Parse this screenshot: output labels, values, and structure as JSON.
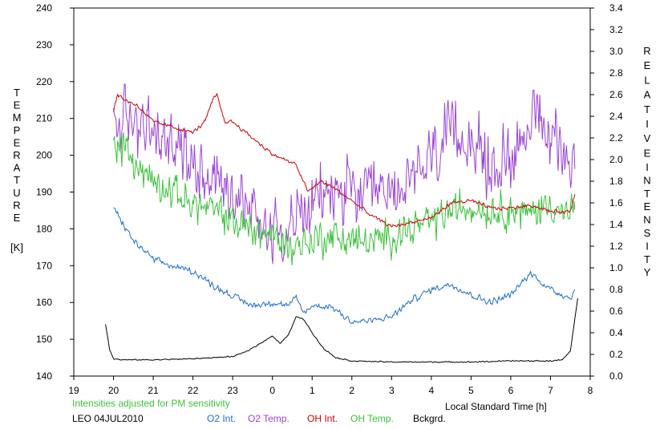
{
  "chart_data": {
    "type": "line",
    "x_axis": {
      "label": "Local Standard Time [h]",
      "range": [
        19,
        8
      ],
      "tick_labels": [
        "19",
        "20",
        "21",
        "22",
        "23",
        "0",
        "1",
        "2",
        "3",
        "4",
        "5",
        "6",
        "7",
        "8"
      ]
    },
    "y_left": {
      "label_letters": [
        "T",
        "E",
        "M",
        "P",
        "E",
        "R",
        "A",
        "T",
        "U",
        "R",
        "E"
      ],
      "unit": "[K]",
      "range": [
        140,
        240
      ],
      "tick_labels": [
        "140",
        "150",
        "160",
        "170",
        "180",
        "190",
        "200",
        "210",
        "220",
        "230",
        "240"
      ]
    },
    "y_right": {
      "label_word1": [
        "R",
        "E",
        "L",
        "A",
        "T",
        "I",
        "V",
        "E"
      ],
      "label_word2": [
        "I",
        "N",
        "T",
        "E",
        "N",
        "S",
        "I",
        "T",
        "Y"
      ],
      "range": [
        0.0,
        3.4
      ],
      "tick_labels": [
        "0.0",
        "0.2",
        "0.4",
        "0.6",
        "0.8",
        "1.0",
        "1.2",
        "1.4",
        "1.6",
        "1.8",
        "2.0",
        "2.2",
        "2.4",
        "2.6",
        "2.8",
        "3.0",
        "3.2",
        "3.4"
      ]
    },
    "note": "Intensities adjusted for PM sensitivity",
    "station": "LEO 04JUL2010",
    "series": [
      {
        "name": "O2 Int.",
        "color": "#1f6fd0",
        "axis": "right",
        "hours": [
          20.0,
          20.2,
          20.5,
          21.0,
          21.5,
          22.0,
          22.5,
          23.0,
          23.5,
          24.0,
          24.4,
          24.6,
          24.8,
          25.0,
          25.5,
          26.0,
          26.5,
          27.0,
          27.5,
          28.0,
          28.5,
          29.0,
          29.5,
          30.0,
          30.5,
          31.0,
          31.5,
          31.62
        ],
        "values": [
          1.55,
          1.43,
          1.25,
          1.08,
          1.01,
          0.97,
          0.84,
          0.74,
          0.65,
          0.68,
          0.65,
          0.72,
          0.58,
          0.65,
          0.64,
          0.5,
          0.51,
          0.55,
          0.7,
          0.8,
          0.85,
          0.75,
          0.68,
          0.75,
          0.95,
          0.8,
          0.72,
          0.8
        ],
        "noise": 0.035
      },
      {
        "name": "O2 Temp.",
        "color": "#9b44d6",
        "axis": "left",
        "hours": [
          20.0,
          20.5,
          21.0,
          21.5,
          22.0,
          22.5,
          23.0,
          23.5,
          24.0,
          24.5,
          25.0,
          25.5,
          26.0,
          26.5,
          27.0,
          27.5,
          28.0,
          28.5,
          29.0,
          29.5,
          30.0,
          30.5,
          31.0,
          31.5,
          31.62
        ],
        "values": [
          208,
          210,
          205,
          203,
          198,
          195,
          190,
          185,
          180,
          182,
          186,
          190,
          190,
          188,
          190,
          192,
          200,
          205,
          205,
          195,
          200,
          210,
          205,
          200,
          195
        ],
        "noise": 9
      },
      {
        "name": "OH Int.",
        "color": "#d00000",
        "axis": "right",
        "hours": [
          20.0,
          20.1,
          20.3,
          20.6,
          21.0,
          21.5,
          22.0,
          22.3,
          22.5,
          22.6,
          22.8,
          23.0,
          23.5,
          24.0,
          24.3,
          24.6,
          24.9,
          25.2,
          25.5,
          26.0,
          26.5,
          27.0,
          27.5,
          28.0,
          28.5,
          29.0,
          29.5,
          30.0,
          30.5,
          31.0,
          31.5,
          31.62
        ],
        "values": [
          2.45,
          2.6,
          2.55,
          2.5,
          2.35,
          2.3,
          2.25,
          2.35,
          2.55,
          2.6,
          2.35,
          2.35,
          2.2,
          2.05,
          2.0,
          1.95,
          1.7,
          1.8,
          1.75,
          1.62,
          1.48,
          1.38,
          1.42,
          1.46,
          1.6,
          1.62,
          1.55,
          1.55,
          1.58,
          1.52,
          1.52,
          1.7
        ],
        "noise": 0.02
      },
      {
        "name": "OH Temp.",
        "color": "#3cc23c",
        "axis": "left",
        "hours": [
          20.0,
          20.5,
          21.0,
          21.5,
          22.0,
          22.5,
          23.0,
          23.5,
          24.0,
          24.5,
          25.0,
          25.5,
          26.0,
          26.5,
          27.0,
          27.5,
          28.0,
          28.5,
          29.0,
          29.5,
          30.0,
          30.5,
          31.0,
          31.5,
          31.62
        ],
        "values": [
          205,
          198,
          193,
          190,
          187,
          185,
          182,
          180,
          178,
          175,
          177,
          178,
          177,
          176,
          178,
          180,
          182,
          185,
          186,
          185,
          185,
          184,
          187,
          183,
          188
        ],
        "noise": 5
      },
      {
        "name": "Bckgrd.",
        "color": "#000000",
        "axis": "right",
        "hours": [
          19.8,
          19.9,
          20.0,
          20.2,
          21.0,
          22.0,
          23.0,
          23.3,
          23.6,
          23.9,
          24.0,
          24.2,
          24.4,
          24.6,
          24.8,
          25.0,
          25.3,
          25.6,
          26.0,
          27.0,
          28.0,
          29.0,
          30.0,
          31.0,
          31.3,
          31.5,
          31.62,
          31.7
        ],
        "values": [
          0.48,
          0.25,
          0.16,
          0.15,
          0.15,
          0.16,
          0.18,
          0.22,
          0.28,
          0.35,
          0.37,
          0.3,
          0.38,
          0.55,
          0.52,
          0.4,
          0.25,
          0.17,
          0.14,
          0.13,
          0.13,
          0.13,
          0.14,
          0.14,
          0.15,
          0.23,
          0.55,
          0.75
        ],
        "noise": 0.006
      }
    ]
  }
}
